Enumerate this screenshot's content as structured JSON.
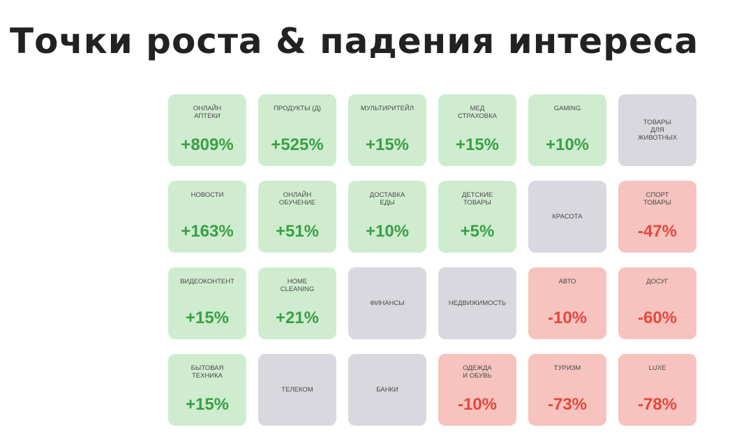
{
  "title": "Точки роста & падения интереса",
  "colors": {
    "up_bg": "#cfeccf",
    "up_text": "#3aa045",
    "down_bg": "#f6c3be",
    "down_text": "#e8473c",
    "neutral_bg": "#d8d8de"
  },
  "tiles": [
    {
      "label": "ОНЛАЙН\nАПТЕКИ",
      "value": "+809%",
      "trend": "up"
    },
    {
      "label": "ПРОДУКТЫ (Д)",
      "value": "+525%",
      "trend": "up"
    },
    {
      "label": "МУЛЬТИРИТЕЙЛ",
      "value": "+15%",
      "trend": "up"
    },
    {
      "label": "МЕД\nСТРАХОВКА",
      "value": "+15%",
      "trend": "up"
    },
    {
      "label": "GAMING",
      "value": "+10%",
      "trend": "up"
    },
    {
      "label": "ТОВАРЫ\nДЛЯ\nЖИВОТНЫХ",
      "value": "",
      "trend": "neutral"
    },
    {
      "label": "НОВОСТИ",
      "value": "+163%",
      "trend": "up"
    },
    {
      "label": "ОНЛАЙН\nОБУЧЕНИЕ",
      "value": "+51%",
      "trend": "up"
    },
    {
      "label": "ДОСТАВКА\nЕДЫ",
      "value": "+10%",
      "trend": "up"
    },
    {
      "label": "ДЕТСКИЕ\nТОВАРЫ",
      "value": "+5%",
      "trend": "up"
    },
    {
      "label": "КРАСОТА",
      "value": "",
      "trend": "neutral"
    },
    {
      "label": "СПОРТ\nТОВАРЫ",
      "value": "-47%",
      "trend": "down"
    },
    {
      "label": "ВИДЕОКОНТЕНТ",
      "value": "+15%",
      "trend": "up"
    },
    {
      "label": "HOME\nCLEANING",
      "value": "+21%",
      "trend": "up"
    },
    {
      "label": "ФИНАНСЫ",
      "value": "",
      "trend": "neutral"
    },
    {
      "label": "НЕДВИЖИМОСТЬ",
      "value": "",
      "trend": "neutral"
    },
    {
      "label": "АВТО",
      "value": "-10%",
      "trend": "down"
    },
    {
      "label": "ДОСУГ",
      "value": "-60%",
      "trend": "down"
    },
    {
      "label": "БЫТОВАЯ\nТЕХНИКА",
      "value": "+15%",
      "trend": "up"
    },
    {
      "label": "ТЕЛЕКОМ",
      "value": "",
      "trend": "neutral"
    },
    {
      "label": "БАНКИ",
      "value": "",
      "trend": "neutral"
    },
    {
      "label": "ОДЕЖДА\nИ ОБУВЬ",
      "value": "-10%",
      "trend": "down"
    },
    {
      "label": "ТУРИЗМ",
      "value": "-73%",
      "trend": "down"
    },
    {
      "label": "LUXE",
      "value": "-78%",
      "trend": "down"
    }
  ]
}
